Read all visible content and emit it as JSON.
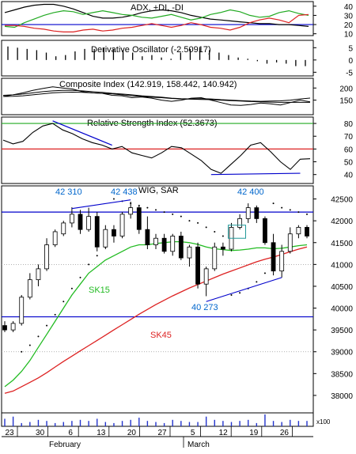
{
  "chart_data": [
    {
      "type": "line",
      "title": "ADX, +DI, -DI",
      "ylim": [
        8,
        45
      ],
      "y_ticks": [
        10,
        20,
        30,
        40
      ],
      "reference_lines": [
        20
      ],
      "colors": {
        "adx": "#000000",
        "plus_di": "#22aa22",
        "minus_di": "#dd2222",
        "ref": "#0000cc"
      },
      "series": [
        {
          "key": "adx",
          "values": [
            33,
            36,
            39,
            41,
            42,
            42,
            40,
            37,
            33,
            29,
            27,
            27,
            28,
            30,
            33,
            35,
            36,
            35,
            33,
            30,
            28,
            26,
            25,
            24,
            23,
            22,
            21,
            21,
            20,
            20,
            19,
            18
          ]
        },
        {
          "key": "plus_di",
          "values": [
            18,
            17,
            22,
            26,
            30,
            33,
            35,
            34,
            31,
            33,
            35,
            33,
            31,
            30,
            28,
            27,
            29,
            31,
            28,
            25,
            27,
            31,
            33,
            36,
            34,
            30,
            28,
            29,
            33,
            35,
            32,
            30
          ]
        },
        {
          "key": "minus_di",
          "values": [
            19,
            19,
            18,
            16,
            15,
            13,
            12,
            12,
            14,
            15,
            13,
            14,
            16,
            17,
            19,
            21,
            19,
            17,
            19,
            22,
            20,
            17,
            16,
            14,
            17,
            22,
            25,
            27,
            25,
            22,
            30,
            31
          ]
        }
      ]
    },
    {
      "type": "bar",
      "title": "Derivative Oscillator (-2.50917)",
      "ylim": [
        -6.5,
        8
      ],
      "y_ticks": [
        -5,
        0,
        5
      ],
      "values": [
        5.5,
        5.0,
        4.5,
        4.0,
        3.0,
        1.5,
        2.0,
        3.5,
        4.5,
        4.5,
        5.0,
        4.5,
        4.0,
        3.0,
        1.5,
        2.0,
        1.0,
        0.5,
        3.0,
        4.5,
        5.0,
        4.0,
        3.0,
        2.0,
        1.0,
        0.5,
        -0.5,
        -1.5,
        -1.0,
        -1.5,
        -2.5,
        -2.50917
      ]
    },
    {
      "type": "line",
      "title": "Composite Index (142.919, 158.442, 140.942)",
      "ylim": [
        90,
        240
      ],
      "y_ticks": [
        150,
        200
      ],
      "series": [
        {
          "key": "ci",
          "values": [
            165,
            172,
            180,
            190,
            198,
            205,
            200,
            196,
            185,
            180,
            178,
            170,
            168,
            160,
            163,
            158,
            150,
            145,
            150,
            158,
            160,
            150,
            140,
            130,
            128,
            132,
            138,
            135,
            130,
            140,
            150,
            142.919
          ]
        },
        {
          "key": "ma_fast",
          "values": [
            170,
            172,
            175,
            180,
            185,
            188,
            190,
            190,
            188,
            185,
            182,
            178,
            175,
            172,
            168,
            165,
            162,
            158,
            156,
            155,
            156,
            155,
            152,
            150,
            148,
            146,
            145,
            146,
            147,
            150,
            155,
            158.442
          ]
        },
        {
          "key": "ma_slow",
          "values": [
            165,
            166,
            168,
            172,
            176,
            180,
            182,
            183,
            182,
            180,
            178,
            176,
            172,
            168,
            165,
            162,
            160,
            157,
            155,
            154,
            153,
            152,
            150,
            148,
            146,
            144,
            143,
            142,
            141,
            141,
            141,
            140.942
          ]
        }
      ]
    },
    {
      "type": "line",
      "title": "Relative Strength Index (52.3673)",
      "ylim": [
        33,
        85
      ],
      "y_ticks": [
        40,
        50,
        60,
        70,
        80
      ],
      "reference_lines": [
        80,
        60
      ],
      "colors": {
        "line": "#000000",
        "upper": "#22aa22",
        "lower": "#dd2222",
        "trend": "#0000cc"
      },
      "series": [
        {
          "key": "rsi",
          "values": [
            67,
            64,
            66,
            73,
            78,
            80,
            75,
            72,
            68,
            65,
            63,
            60,
            62,
            57,
            55,
            53,
            57,
            62,
            61,
            56,
            51,
            44,
            41,
            48,
            55,
            63,
            65,
            58,
            50,
            44,
            52,
            52.3673
          ]
        }
      ],
      "trendlines": [
        [
          5,
          82,
          11,
          63
        ],
        [
          21,
          40,
          30,
          41
        ]
      ]
    },
    {
      "type": "candlestick",
      "title": "WIG, SAR",
      "ylim": [
        37600,
        42800
      ],
      "y_ticks": [
        38000,
        38500,
        39000,
        39500,
        40000,
        40500,
        41000,
        41500,
        42000,
        42500
      ],
      "y_unit": "x100",
      "x_tick_labels": [
        "23",
        "30",
        "6",
        "13",
        "20",
        "27",
        "5",
        "12",
        "19",
        "26"
      ],
      "month_labels": [
        "February",
        "March"
      ],
      "reference_lines": [
        42200,
        39800
      ],
      "annotations": [
        "42 310",
        "42 438",
        "42 400",
        "40 273"
      ],
      "moving_averages": [
        "SK15",
        "SK45"
      ],
      "colors": {
        "sk15": "#22bb22",
        "sk45": "#dd2222",
        "ref": "#0000cc",
        "label": "#0066cc"
      },
      "candles": [
        {
          "o": 39600,
          "h": 39700,
          "l": 39450,
          "c": 39500
        },
        {
          "o": 39500,
          "h": 39700,
          "l": 39450,
          "c": 39650
        },
        {
          "o": 39650,
          "h": 40300,
          "l": 39600,
          "c": 40250
        },
        {
          "o": 40250,
          "h": 40800,
          "l": 40200,
          "c": 40650
        },
        {
          "o": 40650,
          "h": 41000,
          "l": 40500,
          "c": 40900
        },
        {
          "o": 40900,
          "h": 41600,
          "l": 40850,
          "c": 41450
        },
        {
          "o": 41450,
          "h": 41800,
          "l": 41400,
          "c": 41750
        },
        {
          "o": 41700,
          "h": 42000,
          "l": 41650,
          "c": 41950
        },
        {
          "o": 41950,
          "h": 42310,
          "l": 41850,
          "c": 42150
        },
        {
          "o": 42150,
          "h": 42250,
          "l": 41700,
          "c": 41800
        },
        {
          "o": 41800,
          "h": 42300,
          "l": 41750,
          "c": 42100
        },
        {
          "o": 42100,
          "h": 42200,
          "l": 41300,
          "c": 41400
        },
        {
          "o": 41400,
          "h": 41900,
          "l": 41350,
          "c": 41800
        },
        {
          "o": 41800,
          "h": 41900,
          "l": 41500,
          "c": 41650
        },
        {
          "o": 41650,
          "h": 42200,
          "l": 41600,
          "c": 42150
        },
        {
          "o": 42150,
          "h": 42438,
          "l": 42050,
          "c": 42300
        },
        {
          "o": 42300,
          "h": 42350,
          "l": 41700,
          "c": 41800
        },
        {
          "o": 41800,
          "h": 42100,
          "l": 41350,
          "c": 41450
        },
        {
          "o": 41450,
          "h": 41700,
          "l": 41350,
          "c": 41600
        },
        {
          "o": 41600,
          "h": 41700,
          "l": 41250,
          "c": 41300
        },
        {
          "o": 41300,
          "h": 41700,
          "l": 41200,
          "c": 41650
        },
        {
          "o": 41650,
          "h": 41750,
          "l": 41100,
          "c": 41150
        },
        {
          "o": 41150,
          "h": 41450,
          "l": 40950,
          "c": 41400
        },
        {
          "o": 41400,
          "h": 41500,
          "l": 40450,
          "c": 40550
        },
        {
          "o": 40550,
          "h": 40950,
          "l": 40273,
          "c": 40900
        },
        {
          "o": 40900,
          "h": 41500,
          "l": 40850,
          "c": 41400
        },
        {
          "o": 41400,
          "h": 41500,
          "l": 41200,
          "c": 41350
        },
        {
          "o": 41350,
          "h": 41950,
          "l": 41300,
          "c": 41850
        },
        {
          "o": 41850,
          "h": 42150,
          "l": 41800,
          "c": 42050
        },
        {
          "o": 42050,
          "h": 42400,
          "l": 41950,
          "c": 42300
        },
        {
          "o": 42300,
          "h": 42350,
          "l": 41950,
          "c": 42050
        },
        {
          "o": 42050,
          "h": 42100,
          "l": 41450,
          "c": 41500
        },
        {
          "o": 41500,
          "h": 41700,
          "l": 40750,
          "c": 40850
        },
        {
          "o": 40850,
          "h": 41450,
          "l": 40700,
          "c": 41300
        },
        {
          "o": 41300,
          "h": 41850,
          "l": 41250,
          "c": 41700
        },
        {
          "o": 41700,
          "h": 41900,
          "l": 41600,
          "c": 41850
        },
        {
          "o": 41850,
          "h": 41900,
          "l": 41600,
          "c": 41650
        }
      ],
      "sk15": [
        38200,
        38350,
        38550,
        38800,
        39100,
        39400,
        39700,
        40000,
        40300,
        40550,
        40800,
        40950,
        41100,
        41200,
        41300,
        41400,
        41450,
        41450,
        41480,
        41500,
        41520,
        41520,
        41500,
        41460,
        41400,
        41360,
        41340,
        41320,
        41330,
        41350,
        41380,
        41380,
        41360,
        41370,
        41400,
        41430,
        41450
      ],
      "sk45": [
        38050,
        38100,
        38200,
        38300,
        38400,
        38520,
        38650,
        38780,
        38900,
        39020,
        39140,
        39260,
        39380,
        39500,
        39620,
        39740,
        39860,
        39970,
        40080,
        40180,
        40280,
        40370,
        40460,
        40540,
        40620,
        40700,
        40780,
        40850,
        40920,
        40990,
        41060,
        41120,
        41170,
        41230,
        41290,
        41350,
        41400
      ],
      "sar": [
        null,
        null,
        39000,
        39150,
        39350,
        39600,
        39850,
        40150,
        40450,
        40700,
        41000,
        41200,
        41400,
        42500,
        42450,
        42400,
        42350,
        42300,
        42250,
        42200,
        42150,
        42100,
        42000,
        41950,
        41850,
        41750,
        41650,
        40300,
        40350,
        40450,
        40600,
        40800,
        42400,
        42300,
        42250,
        42200,
        42150
      ],
      "volume": [
        7,
        9,
        3,
        4,
        6,
        5,
        3,
        4,
        5,
        6,
        5,
        7,
        4,
        3,
        5,
        6,
        8,
        5,
        4,
        3,
        6,
        5,
        4,
        4,
        9,
        6,
        5,
        4,
        5,
        6,
        3,
        11,
        5,
        4,
        6,
        5,
        5
      ]
    }
  ]
}
